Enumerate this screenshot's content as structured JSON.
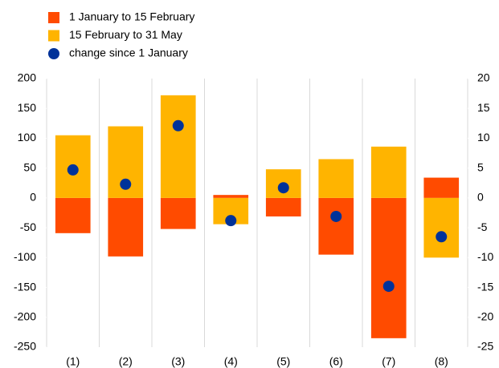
{
  "chart_data": {
    "type": "bar",
    "categories": [
      "(1)",
      "(2)",
      "(3)",
      "(4)",
      "(5)",
      "(6)",
      "(7)",
      "(8)"
    ],
    "series": [
      {
        "name": "1 January to 15 February",
        "color": "#ff4b00",
        "values": [
          -59,
          -98,
          -52,
          5,
          -31,
          -95,
          -235,
          34
        ]
      },
      {
        "name": "15 February to 31 May",
        "color": "#ffb400",
        "values": [
          105,
          120,
          172,
          -44,
          48,
          65,
          86,
          -100
        ]
      },
      {
        "name": "change since 1 January",
        "color": "#003299",
        "type": "scatter",
        "axis": "y2",
        "values": [
          4.7,
          2.3,
          12.1,
          -3.8,
          1.7,
          -3.1,
          -14.8,
          -6.5
        ]
      }
    ],
    "ylim": [
      -250,
      200
    ],
    "yticks": [
      -250,
      -200,
      -150,
      -100,
      -50,
      0,
      50,
      100,
      150,
      200
    ],
    "y2lim": [
      -25,
      20
    ],
    "y2ticks": [
      -25,
      -20,
      -15,
      -10,
      -5,
      0,
      5,
      10,
      15,
      20
    ],
    "stacked": true,
    "grid": true
  }
}
